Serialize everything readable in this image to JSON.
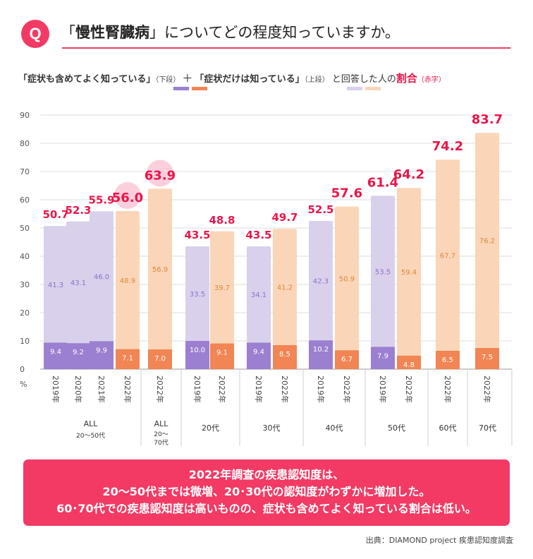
{
  "question": {
    "badge": "Q",
    "open_quote": "「",
    "topic": "慢性腎臓病",
    "close_quote": "」",
    "rest": "についてどの程度知っていますか。"
  },
  "legend": {
    "label_a": "「症状も含めてよく知っている」",
    "label_a_note": "（下段）",
    "plus": "＋",
    "label_b": "「症状だけは知っている」",
    "label_b_note": "（上段）",
    "answer_text": "と回答した人の",
    "ratio_label": "割合",
    "ratio_note": "（赤字）"
  },
  "colors": {
    "purple_dark": "#9b7fd0",
    "purple_light": "#d9d0ec",
    "orange_dark": "#f18553",
    "orange_light": "#fbd5b8",
    "accent": "#e8174a",
    "highlight": "#fbcfdc"
  },
  "chart_data": {
    "type": "bar",
    "stacked": true,
    "ylim": [
      0,
      90
    ],
    "yticks": [
      0,
      10,
      20,
      30,
      40,
      50,
      60,
      70,
      80,
      90
    ],
    "yunit": "%",
    "series_names": [
      "症状も含めてよく知っている（下段）",
      "症状だけは知っている（上段）"
    ],
    "groups": [
      {
        "name": "ALL",
        "sub": "20〜50代",
        "bars": [
          {
            "year": "2019年",
            "lower": "9.4",
            "upper": "41.3",
            "total": "50.7"
          },
          {
            "year": "2020年",
            "lower": "9.2",
            "upper": "43.1",
            "total": "52.3"
          },
          {
            "year": "2021年",
            "lower": "9.9",
            "upper": "46.0",
            "total": "55.9"
          },
          {
            "year": "2022年",
            "lower": "7.1",
            "upper": "48.9",
            "total": "56.0",
            "highlight": true
          }
        ]
      },
      {
        "name": "ALL",
        "sub": "20〜",
        "sub2": "70代",
        "bars": [
          {
            "year": "2022年",
            "lower": "7.0",
            "upper": "56.9",
            "total": "63.9",
            "highlight": true
          }
        ]
      },
      {
        "name": "20代",
        "bars": [
          {
            "year": "2019年",
            "lower": "10.0",
            "upper": "33.5",
            "total": "43.5"
          },
          {
            "year": "2022年",
            "lower": "9.1",
            "upper": "39.7",
            "total": "48.8"
          }
        ]
      },
      {
        "name": "30代",
        "bars": [
          {
            "year": "2019年",
            "lower": "9.4",
            "upper": "34.1",
            "total": "43.5"
          },
          {
            "year": "2022年",
            "lower": "8.5",
            "upper": "41.2",
            "total": "49.7"
          }
        ]
      },
      {
        "name": "40代",
        "bars": [
          {
            "year": "2019年",
            "lower": "10.2",
            "upper": "42.3",
            "total": "52.5"
          },
          {
            "year": "2022年",
            "lower": "6.7",
            "upper": "50.9",
            "total": "57.6"
          }
        ]
      },
      {
        "name": "50代",
        "bars": [
          {
            "year": "2019年",
            "lower": "7.9",
            "upper": "53.5",
            "total": "61.4"
          },
          {
            "year": "2022年",
            "lower": "4.8",
            "upper": "59.4",
            "total": "64.2"
          }
        ]
      },
      {
        "name": "60代",
        "bars": [
          {
            "year": "2022年",
            "lower": "6.5",
            "upper": "67.7",
            "total": "74.2"
          }
        ]
      },
      {
        "name": "70代",
        "bars": [
          {
            "year": "2022年",
            "lower": "7.5",
            "upper": "76.2",
            "total": "83.7"
          }
        ]
      }
    ]
  },
  "note": {
    "line1": "2022年調査の疾患認知度は、",
    "line2": "20〜50代までは微増、20･30代の認知度がわずかに増加した。",
    "line3": "60･70代での疾患認知度は高いものの、症状も含めてよく知っている割合は低い。"
  },
  "source": "出典：DIAMOND project 疾患認知度調査"
}
